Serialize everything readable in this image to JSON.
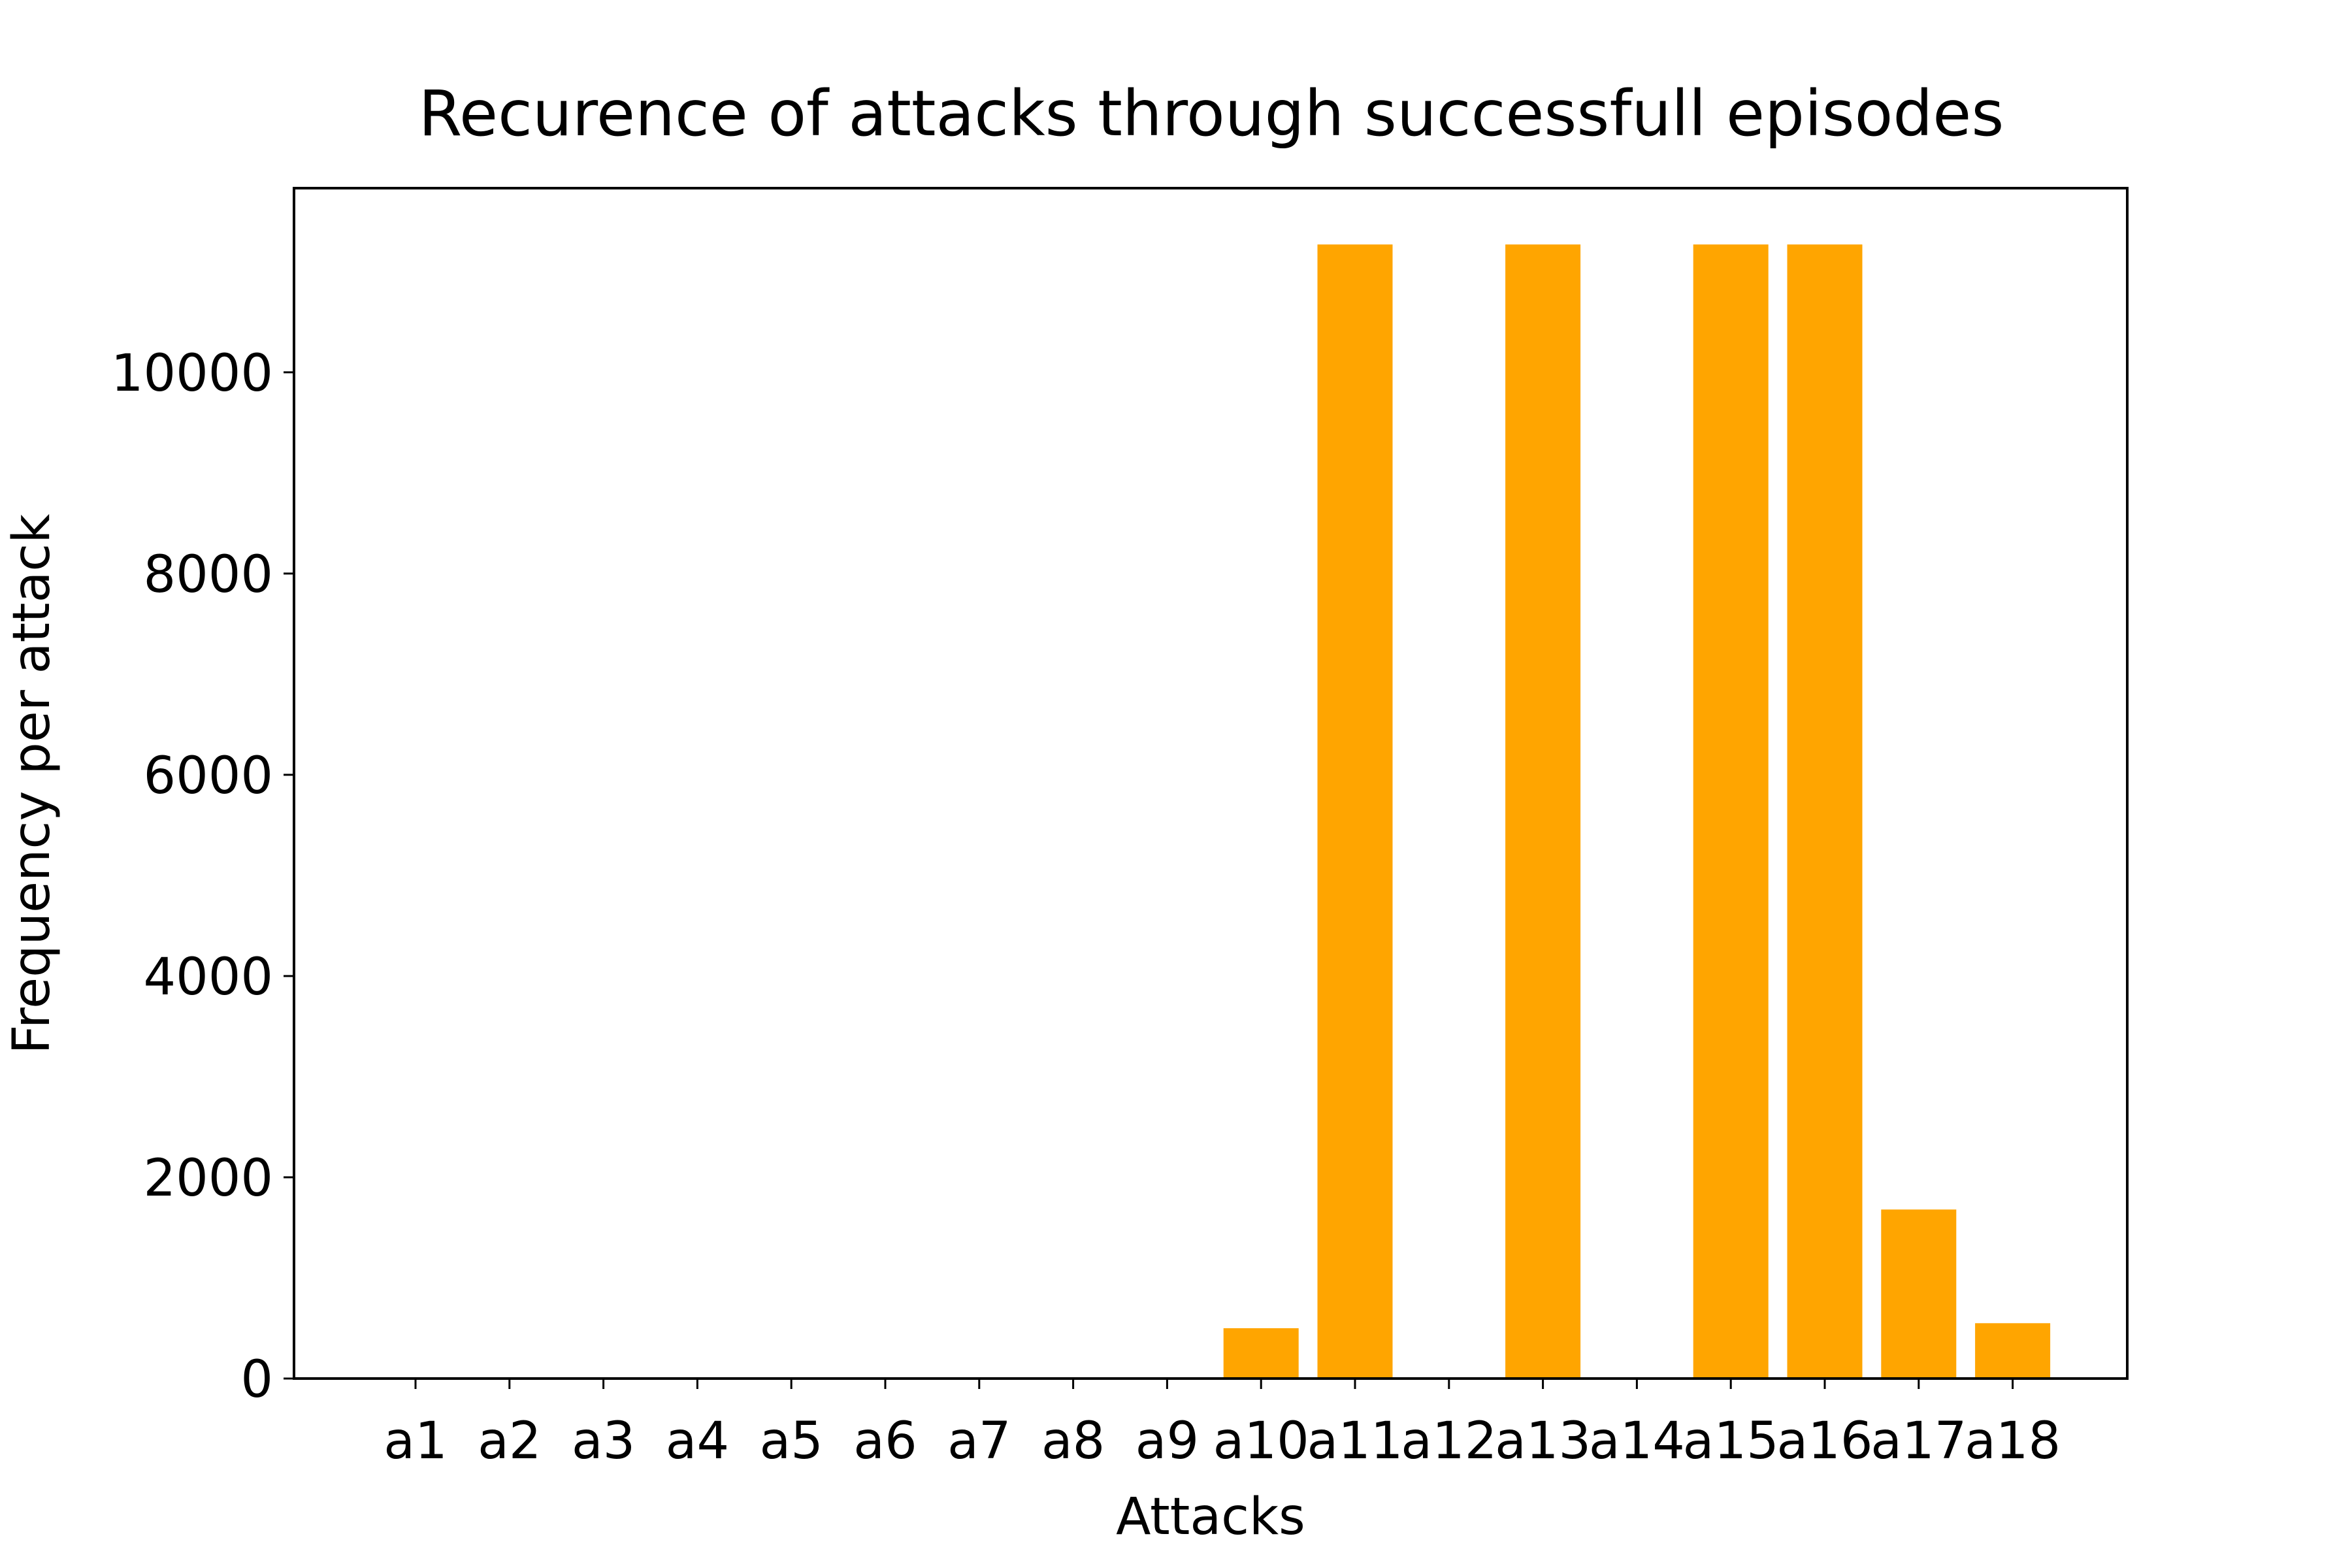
{
  "chart_data": {
    "type": "bar",
    "title": "Recurence of attacks through successfull episodes",
    "xlabel": "Attacks",
    "ylabel": "Frequency per attack",
    "categories": [
      "a1",
      "a2",
      "a3",
      "a4",
      "a5",
      "a6",
      "a7",
      "a8",
      "a9",
      "a10",
      "a11",
      "a12",
      "a13",
      "a14",
      "a15",
      "a16",
      "a17",
      "a18"
    ],
    "values": [
      0,
      0,
      0,
      0,
      0,
      0,
      0,
      0,
      0,
      500,
      11270,
      0,
      11270,
      0,
      11270,
      11270,
      1680,
      550
    ],
    "ylim": [
      0,
      11830
    ],
    "yticks": [
      0,
      2000,
      4000,
      6000,
      8000,
      10000
    ],
    "ytick_labels": [
      "0",
      "2000",
      "4000",
      "6000",
      "8000",
      "10000"
    ],
    "bar_color": "#ffa500",
    "grid": false,
    "legend": "none"
  }
}
